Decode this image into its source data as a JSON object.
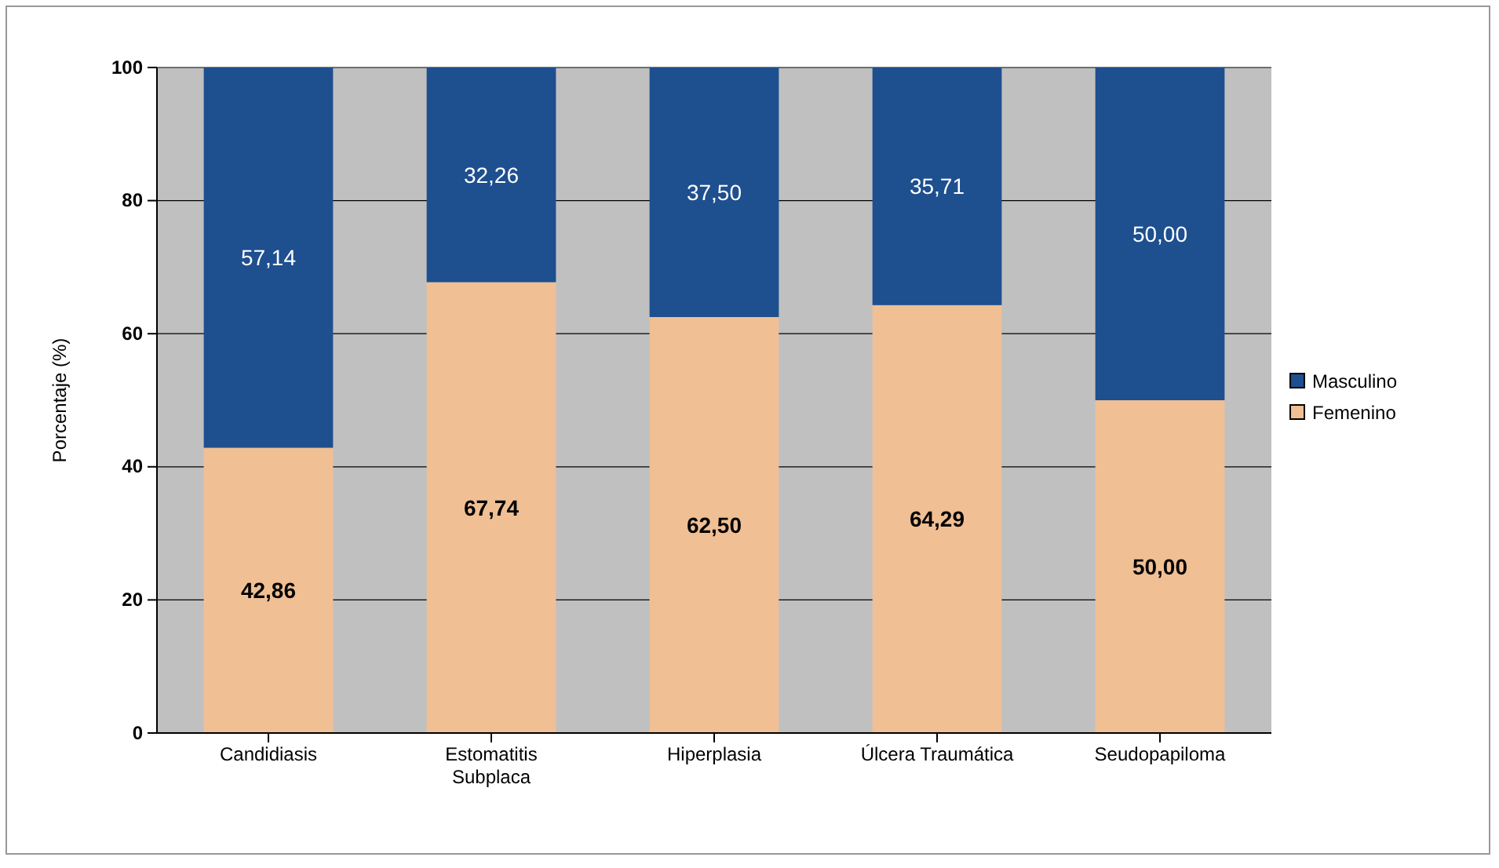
{
  "chart_data": {
    "type": "bar",
    "ylabel": "Porcentaje (%)",
    "categories": [
      "Candidiasis",
      "Estomatitis Subplaca",
      "Hiperplasia",
      "Úlcera Traumática",
      "Seudopapiloma"
    ],
    "series": [
      {
        "name": "Femenino",
        "color": "#f0bf94",
        "values": [
          42.86,
          67.74,
          62.5,
          64.29,
          50.0
        ],
        "value_labels": [
          "42,86",
          "67,74",
          "62,50",
          "64,29",
          "50,00"
        ]
      },
      {
        "name": "Masculino",
        "color": "#1e4f8f",
        "values": [
          57.14,
          32.26,
          37.5,
          35.71,
          50.0
        ],
        "value_labels": [
          "57,14",
          "32,26",
          "37,50",
          "35,71",
          "50,00"
        ]
      }
    ],
    "stacked": true,
    "ylim": [
      0,
      100
    ],
    "yticks": [
      0,
      20,
      40,
      60,
      80,
      100
    ],
    "grid": "y",
    "legend": "right"
  }
}
